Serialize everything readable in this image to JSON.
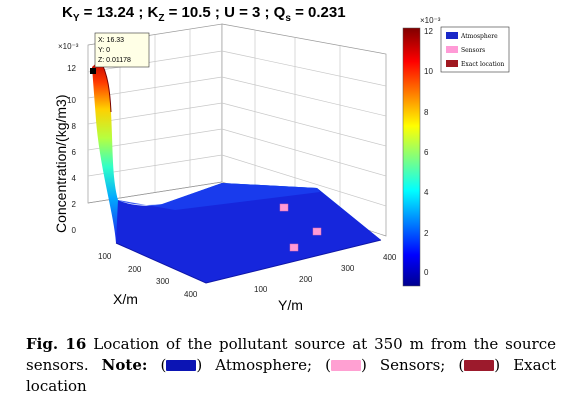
{
  "figure": {
    "title": {
      "ky_label": "K",
      "ky_sub": "Y",
      "ky_value": " = 13.24",
      "kz_label": " ; K",
      "kz_sub": "Z",
      "kz_value": " = 10.5",
      "u_part": " ; U = 3 ; Q",
      "qs_sub": "s",
      "qs_value": " = 0.231"
    },
    "exponent_labels": {
      "z_axis": "×10⁻³",
      "colorbar": "×10⁻³"
    },
    "datatip": {
      "x": "X: 16.33",
      "y": "Y: 0",
      "z": "Z: 0.01178"
    },
    "legend": [
      {
        "label": "Atmosphere",
        "color": "#1a28c8"
      },
      {
        "label": "Sensors",
        "color": "#ff9ad6"
      },
      {
        "label": "Exact location",
        "color": "#a01820"
      }
    ]
  },
  "chart_data": {
    "type": "surface3d",
    "title": "K_Y = 13.24 ; K_Z = 10.5 ; U = 3 ; Q_s = 0.231",
    "xlabel": "X/m",
    "ylabel": "Y/m",
    "zlabel": "Concentration/(kg/m3)",
    "z_scale": "x10^-3",
    "xlim": [
      0,
      400
    ],
    "ylim": [
      0,
      400
    ],
    "zlim": [
      0,
      12
    ],
    "x_ticks": [
      "100",
      "200",
      "300",
      "400"
    ],
    "y_ticks": [
      "100",
      "200",
      "300",
      "400"
    ],
    "z_ticks": [
      "0",
      "2",
      "4",
      "6",
      "8",
      "10",
      "12"
    ],
    "colorbar_ticks": [
      "0",
      "2",
      "4",
      "6",
      "8",
      "10",
      "12"
    ],
    "colormap": "jet",
    "peak": {
      "x": 16.33,
      "y": 0,
      "z": 0.01178
    },
    "sensors": [
      {
        "x": 200,
        "y": 100
      },
      {
        "x": 300,
        "y": 250
      },
      {
        "x": 250,
        "y": 300
      }
    ]
  },
  "caption": {
    "fig_label": "Fig. 16",
    "text": " Location of the pollutant source at 350 m from the source sensors. ",
    "note_label": "Note:",
    "open_paren": " (",
    "close_atm": ") Atmosphere; ",
    "close_sensors": ") Sensors; (",
    "close_exact": ") Exact location",
    "colors": {
      "atmosphere": "#0b14b4",
      "sensors": "#ffa0d2",
      "exact": "#9c1a2c"
    }
  }
}
